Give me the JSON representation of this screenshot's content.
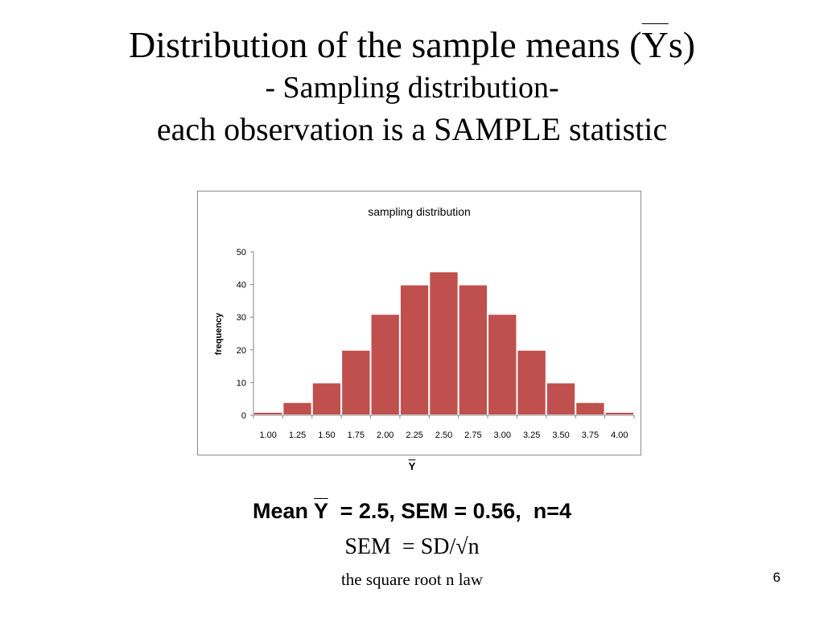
{
  "slide": {
    "title_prefix": "Distribution of the sample means (",
    "title_ybar": "Y",
    "title_suffix": "s)",
    "subtitle": "- Sampling distribution-",
    "subtitle2": "each observation is a SAMPLE statistic",
    "mean_prefix": "Mean ",
    "mean_ybar": "Y",
    "mean_suffix": "  = 2.5, SEM = 0.56,  n=4",
    "sem_formula": "SEM  = SD/√n",
    "law_note": "the square root n law",
    "page_number": "6"
  },
  "chart_data": {
    "type": "bar",
    "title": "sampling distribution",
    "xlabel": "Y",
    "ylabel": "frequency",
    "categories": [
      "1.00",
      "1.25",
      "1.50",
      "1.75",
      "2.00",
      "2.25",
      "2.50",
      "2.75",
      "3.00",
      "3.25",
      "3.50",
      "3.75",
      "4.00"
    ],
    "values": [
      1,
      4,
      10,
      20,
      31,
      40,
      44,
      40,
      31,
      20,
      10,
      4,
      1
    ],
    "yticks": [
      "0",
      "10",
      "20",
      "30",
      "40",
      "50"
    ],
    "ylim": [
      0,
      50
    ],
    "grid": false,
    "legend": "none",
    "bar_color": "#c0504d",
    "bar_edge_color": "#ffffff"
  }
}
